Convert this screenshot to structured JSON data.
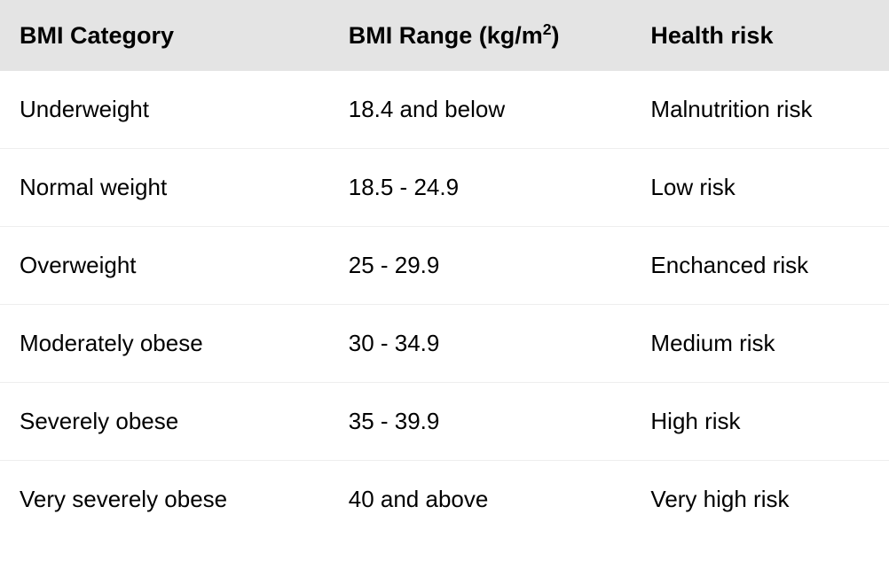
{
  "table": {
    "type": "table",
    "header_background": "#e4e4e4",
    "background_color": "#ffffff",
    "border_color": "#eeeeee",
    "text_color": "#000000",
    "header_fontsize": 27,
    "body_fontsize": 26,
    "header_fontweight": 700,
    "columns": [
      {
        "label": "BMI Category",
        "width_pct": 37
      },
      {
        "label_prefix": "BMI Range (kg/m",
        "label_sup": "2",
        "label_suffix": ")",
        "width_pct": 34
      },
      {
        "label": "Health risk",
        "width_pct": 29
      }
    ],
    "rows": [
      [
        "Underweight",
        "18.4 and below",
        "Malnutrition risk"
      ],
      [
        "Normal weight",
        "18.5 - 24.9",
        "Low risk"
      ],
      [
        "Overweight",
        "25 - 29.9",
        "Enchanced risk"
      ],
      [
        "Moderately obese",
        "30 - 34.9",
        "Medium risk"
      ],
      [
        "Severely obese",
        "35 - 39.9",
        "High risk"
      ],
      [
        "Very severely obese",
        "40 and above",
        "Very high risk"
      ]
    ]
  }
}
